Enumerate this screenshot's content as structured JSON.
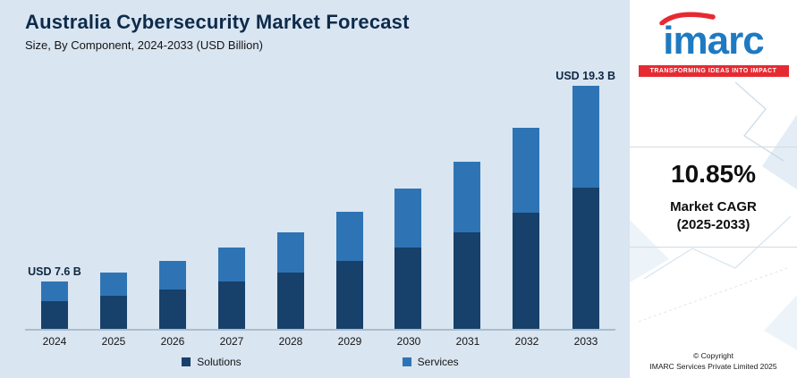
{
  "header": {
    "title": "Australia Cybersecurity Market Forecast",
    "subtitle": "Size, By Component, 2024-2033 (USD Billion)"
  },
  "colors": {
    "chart_background": "#d9e5f1",
    "solutions": "#17416a",
    "services": "#2e74b5",
    "title_navy": "#0d2b4b",
    "imarc_blue": "#1e7ac1",
    "imarc_red": "#e62a32"
  },
  "chart_data": {
    "type": "bar",
    "stacked": true,
    "title": "Australia Cybersecurity Market Forecast",
    "subtitle": "Size, By Component, 2024-2033 (USD Billion)",
    "unit": "USD Billion",
    "categories": [
      "2024",
      "2025",
      "2026",
      "2027",
      "2028",
      "2029",
      "2030",
      "2031",
      "2032",
      "2033"
    ],
    "series": [
      {
        "name": "Solutions",
        "color": "#17416a",
        "values": [
          4.4,
          4.9,
          5.4,
          6.0,
          6.6,
          7.4,
          8.2,
          9.0,
          10.0,
          11.2
        ]
      },
      {
        "name": "Services",
        "color": "#2e74b5",
        "values": [
          3.2,
          3.5,
          3.9,
          4.3,
          4.8,
          5.3,
          5.9,
          6.6,
          7.3,
          8.1
        ]
      }
    ],
    "totals": [
      7.6,
      8.4,
      9.3,
      10.3,
      11.4,
      12.7,
      14.1,
      15.6,
      17.3,
      19.3
    ],
    "annotations": [
      {
        "index": 0,
        "text": "USD 7.6 B"
      },
      {
        "index": 9,
        "text": "USD 19.3 B"
      }
    ],
    "legend_position": "bottom",
    "grid": false
  },
  "legend": {
    "solutions_label": "Solutions",
    "services_label": "Services"
  },
  "sidebar": {
    "logo_text": "imarc",
    "tagline": "TRANSFORMING IDEAS INTO IMPACT",
    "cagr_value": "10.85%",
    "cagr_label_line1": "Market CAGR",
    "cagr_label_line2": "(2025-2033)",
    "copyright_line1": "© Copyright",
    "copyright_line2": "IMARC Services Private Limited 2025"
  }
}
